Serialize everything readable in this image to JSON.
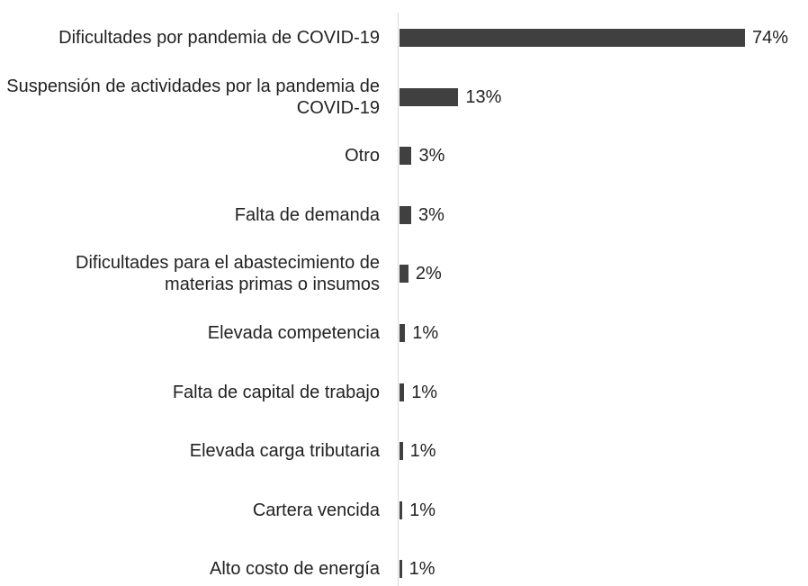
{
  "chart_data": {
    "type": "bar",
    "orientation": "horizontal",
    "categories": [
      "Dificultades por pandemia de COVID-19",
      "Suspensión de actividades por la pandemia de COVID-19",
      "Otro",
      "Falta de demanda",
      "Dificultades para el abastecimiento de materias primas o insumos",
      "Elevada competencia",
      "Falta de capital de trabajo",
      "Elevada carga tributaria",
      "Cartera vencida",
      "Alto costo de energía"
    ],
    "values": [
      74,
      12.6,
      2.6,
      2.5,
      1.9,
      1.2,
      1.0,
      0.7,
      0.6,
      0.5
    ],
    "value_labels": [
      "74%",
      "13%",
      "3%",
      "3%",
      "2%",
      "1%",
      "1%",
      "1%",
      "1%",
      "1%"
    ],
    "color": "#404040"
  }
}
